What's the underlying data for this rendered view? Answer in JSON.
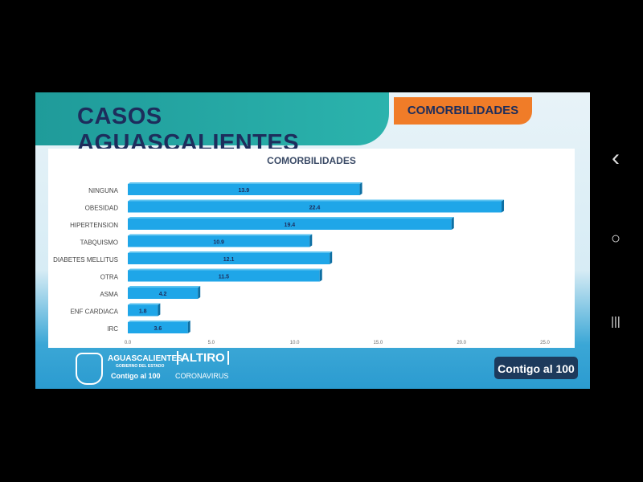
{
  "slide": {
    "title": "CASOS AGUASCALIENTES",
    "tab": "COMORBILIDADES",
    "footer": {
      "state_name": "AGUASCALIENTES",
      "state_sub": "GOBIERNO DEL ESTADO",
      "slogan": "Contigo al 100",
      "campaign": "ALTIRO",
      "campaign_sub": "CORONAVIRUS",
      "badge": "Contigo al 100"
    }
  },
  "chart_data": {
    "type": "bar",
    "orientation": "horizontal",
    "title": "COMORBILIDADES",
    "categories": [
      "NINGUNA",
      "OBESIDAD",
      "HIPERTENSION",
      "TABQUISMO",
      "DIABETES MELLITUS",
      "OTRA",
      "ASMA",
      "ENF CARDIACA",
      "IRC"
    ],
    "values": [
      13.9,
      22.4,
      19.4,
      10.9,
      12.1,
      11.5,
      4.2,
      1.8,
      3.6
    ],
    "xlim": [
      0,
      25
    ],
    "xticks": [
      "0.0",
      "5.0",
      "10.0",
      "15.0",
      "20.0",
      "25.0"
    ],
    "grid": false,
    "bar_color": "#1fa6e8",
    "xlabel": "",
    "ylabel": ""
  },
  "phone_nav": {
    "back": "‹",
    "home": "○",
    "recents": "|||"
  }
}
